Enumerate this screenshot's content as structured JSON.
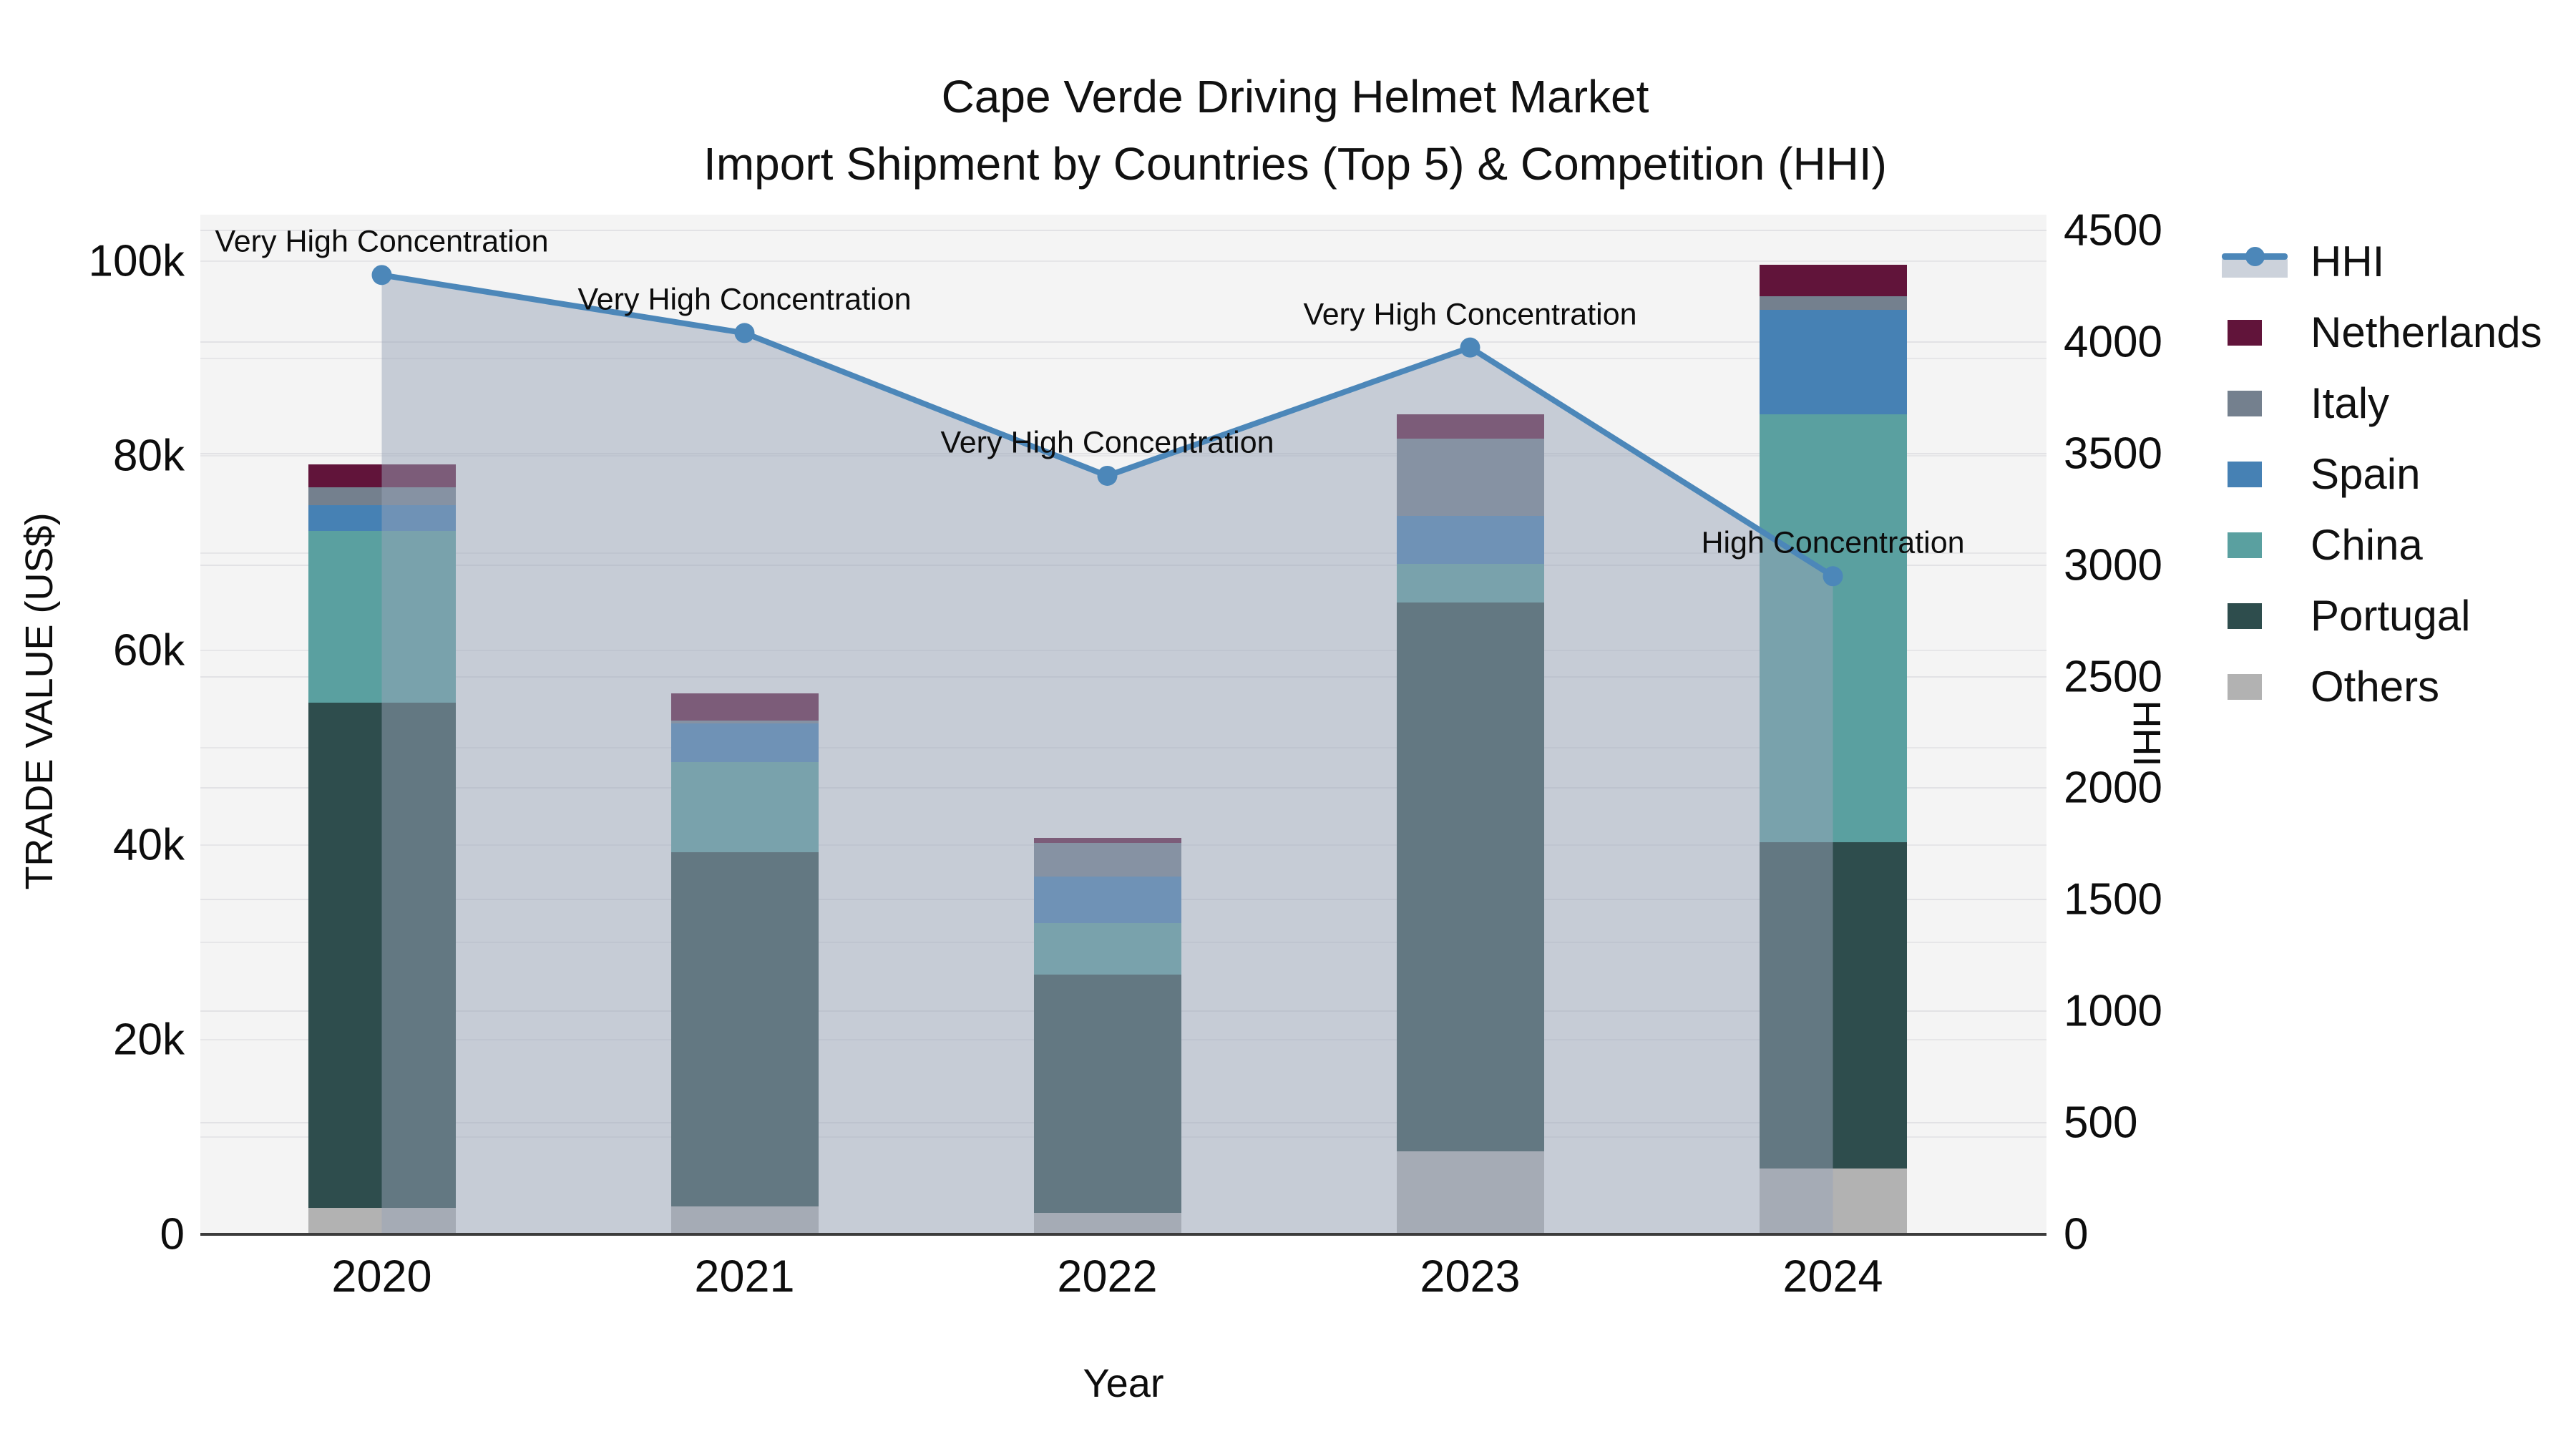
{
  "title": "Cape Verde Driving Helmet Market",
  "subtitle": "Import Shipment by Countries (Top 5) & Competition (HHI)",
  "chart_data": {
    "type": "combo: stacked-bar + line (secondary axis) + area fill",
    "categories": [
      "2020",
      "2021",
      "2022",
      "2023",
      "2024"
    ],
    "series": [
      {
        "name": "Others",
        "color": "#b2b2b2",
        "values": [
          2700,
          2900,
          2200,
          8500,
          6800
        ]
      },
      {
        "name": "Portugal",
        "color": "#2e4d4d",
        "values": [
          51900,
          36400,
          24500,
          56400,
          33500
        ]
      },
      {
        "name": "China",
        "color": "#5aa0a0",
        "values": [
          17700,
          9200,
          5300,
          4000,
          44000
        ]
      },
      {
        "name": "Spain",
        "color": "#4681b4",
        "values": [
          2600,
          4000,
          4800,
          4900,
          10700
        ]
      },
      {
        "name": "Italy",
        "color": "#74808e",
        "values": [
          1900,
          300,
          3400,
          8000,
          1400
        ]
      },
      {
        "name": "Netherlands",
        "color": "#61143a",
        "values": [
          2300,
          2800,
          500,
          2500,
          3200
        ]
      }
    ],
    "line_series": {
      "name": "HHI",
      "color": "#4c87b9",
      "area_fill": "rgba(152,164,184,0.5)",
      "values": [
        4300,
        4040,
        3400,
        3975,
        2950
      ]
    },
    "annotations": [
      {
        "year": "2020",
        "text": "Very High Concentration"
      },
      {
        "year": "2021",
        "text": "Very High Concentration"
      },
      {
        "year": "2022",
        "text": "Very High Concentration"
      },
      {
        "year": "2023",
        "text": "Very High Concentration"
      },
      {
        "year": "2024",
        "text": "High Concentration"
      }
    ],
    "left_axis": {
      "label": "TRADE VALUE (US$)",
      "max": 100000,
      "tick_labels": [
        "0",
        "20k",
        "40k",
        "60k",
        "80k",
        "100k"
      ],
      "tick_values": [
        0,
        20000,
        40000,
        60000,
        80000,
        100000
      ],
      "minor_grid_step": 10000
    },
    "right_axis": {
      "label": "HHI",
      "max": 4500,
      "tick_labels": [
        "0",
        "500",
        "1000",
        "1500",
        "2000",
        "2500",
        "3000",
        "3500",
        "4000",
        "4500"
      ],
      "tick_values": [
        0,
        500,
        1000,
        1500,
        2000,
        2500,
        3000,
        3500,
        4000,
        4500
      ]
    },
    "x_axis": {
      "label": "Year"
    },
    "legend_position": "right",
    "grid": true
  },
  "legend": {
    "items": [
      {
        "name": "HHI",
        "type": "line",
        "color": "#4c87b9"
      },
      {
        "name": "Netherlands",
        "type": "swatch",
        "color": "#61143a"
      },
      {
        "name": "Italy",
        "type": "swatch",
        "color": "#74808e"
      },
      {
        "name": "Spain",
        "type": "swatch",
        "color": "#4681b4"
      },
      {
        "name": "China",
        "type": "swatch",
        "color": "#5aa0a0"
      },
      {
        "name": "Portugal",
        "type": "swatch",
        "color": "#2e4d4d"
      },
      {
        "name": "Others",
        "type": "swatch",
        "color": "#b2b2b2"
      }
    ]
  },
  "colors": {
    "plot_background": "#f4f4f4",
    "page_background": "#ffffff",
    "gridline": "#e6e6e8",
    "axis_line": "#3c3c3c",
    "text": "#111111"
  }
}
